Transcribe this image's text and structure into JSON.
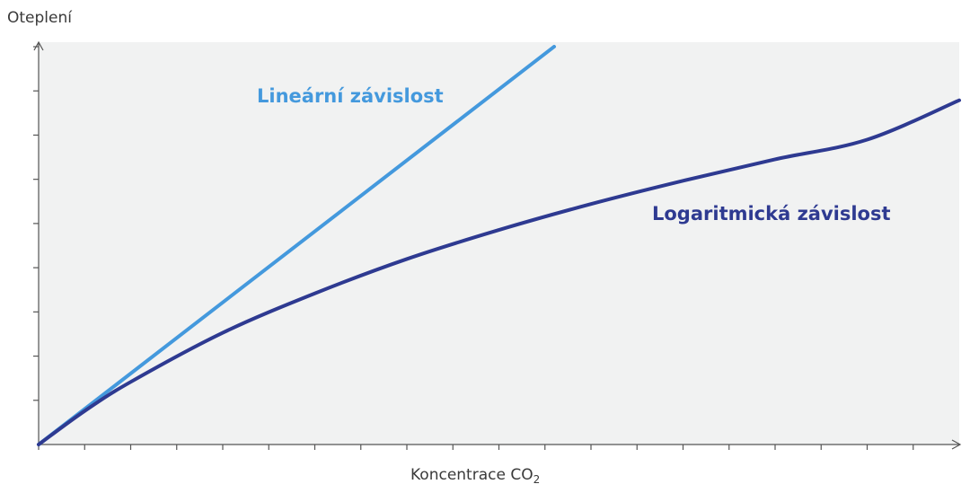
{
  "chart_data": {
    "type": "line",
    "ylabel": "Oteplení",
    "xlabel_main": "Koncentrace CO",
    "xlabel_subscript": "2",
    "grid": false,
    "x_ticks": 20,
    "y_ticks": 9,
    "xlim": [
      0,
      20
    ],
    "ylim": [
      0,
      9
    ],
    "series": [
      {
        "name": "Lineární závislost",
        "color": "#4499dd",
        "x": [
          0,
          11.2
        ],
        "y": [
          0,
          8.9
        ]
      },
      {
        "name": "Logaritmická závislost",
        "color": "#2e3a91",
        "x": [
          0,
          1,
          2,
          4,
          6,
          8,
          10,
          12,
          14,
          16,
          18,
          20
        ],
        "y": [
          0,
          0.75,
          1.4,
          2.5,
          3.38,
          4.15,
          4.8,
          5.38,
          5.9,
          6.38,
          6.82,
          7.7
        ]
      }
    ]
  },
  "colors": {
    "plot_background": "#f1f2f2",
    "axis": "#555555"
  }
}
